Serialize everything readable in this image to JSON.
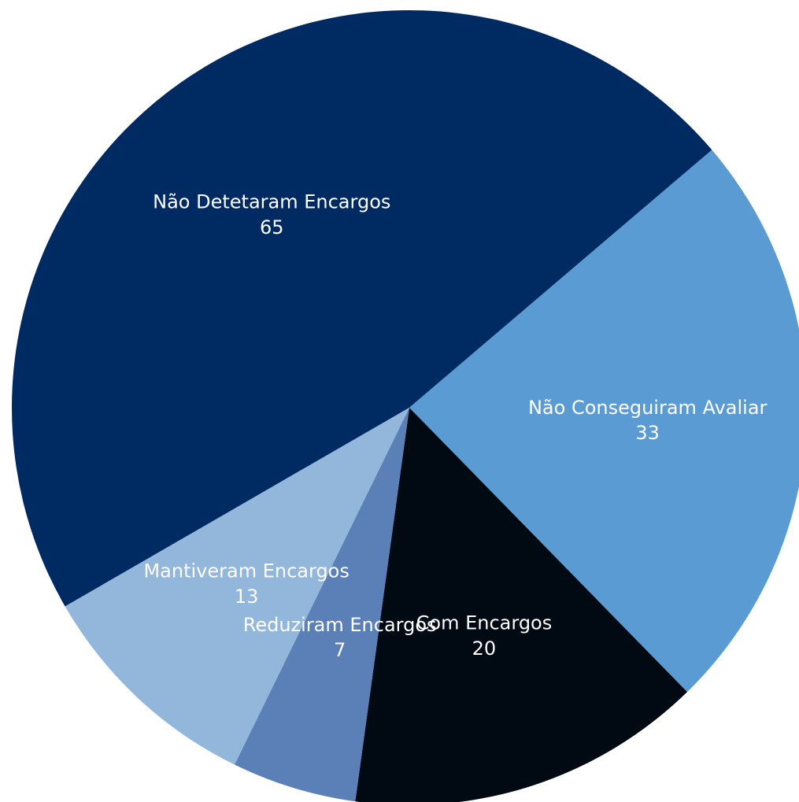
{
  "chart_data": {
    "type": "pie",
    "title": "",
    "legend": "none",
    "slices": [
      {
        "label": "Não Detetaram Encargos",
        "value": 65,
        "color": "#002b62"
      },
      {
        "label": "Não Conseguiram Avaliar",
        "value": 33,
        "color": "#5b9bd3"
      },
      {
        "label": "Com Encargos",
        "value": 20,
        "color": "#010912"
      },
      {
        "label": "Reduziram Encargos",
        "value": 7,
        "color": "#5a80b7"
      },
      {
        "label": "Mantiveram Encargos",
        "value": 13,
        "color": "#93b6db"
      }
    ]
  }
}
